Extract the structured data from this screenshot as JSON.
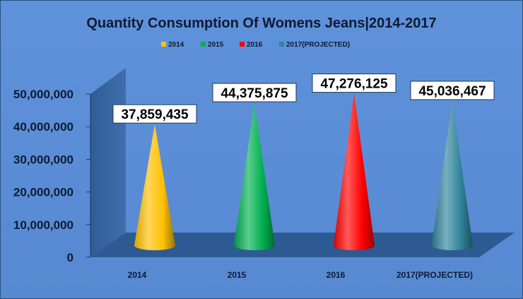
{
  "chart_data": {
    "type": "bar",
    "title": "Quantity Consumption Of Womens Jeans|2014-2017",
    "categories": [
      "2014",
      "2015",
      "2016",
      "2017(PROJECTED)"
    ],
    "values": [
      37859435,
      44375875,
      47276125,
      45036467
    ],
    "data_labels": [
      "37,859,435",
      "44,375,875",
      "47,276,125",
      "45,036,467"
    ],
    "legend": [
      "2014",
      "2015",
      "2016",
      "2017(PROJECTED)"
    ],
    "legend_position": "top",
    "ylim": [
      0,
      50000000
    ],
    "y_ticks": [
      "0",
      "10,000,000",
      "20,000,000",
      "30,000,000",
      "40,000,000",
      "50,000,000"
    ],
    "y_tick_values": [
      0,
      10000000,
      20000000,
      30000000,
      40000000,
      50000000
    ],
    "grid": false,
    "bar_shape": "cone",
    "colors": [
      "#FFC000",
      "#00B050",
      "#FF0000",
      "#31849B"
    ],
    "background_color": "#5B8FD7"
  }
}
